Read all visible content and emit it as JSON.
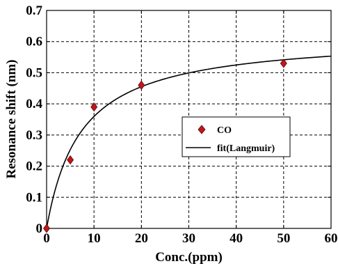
{
  "chart_data": {
    "type": "scatter",
    "xlabel": "Conc.(ppm)",
    "ylabel": "Resonance shift (nm)",
    "xlim": [
      0,
      60
    ],
    "ylim": [
      0,
      0.7
    ],
    "x_ticks": [
      "0",
      "10",
      "20",
      "30",
      "40",
      "50",
      "60"
    ],
    "y_ticks": [
      "0",
      "0.1",
      "0.2",
      "0.3",
      "0.4",
      "0.5",
      "0.6",
      "0.7"
    ],
    "grid": true,
    "legend_position": "center-right",
    "series": [
      {
        "name": "CO",
        "kind": "markers",
        "marker": "diamond",
        "color": "#c0161c",
        "x": [
          0,
          5,
          10,
          20,
          50
        ],
        "y": [
          0.0,
          0.22,
          0.39,
          0.46,
          0.53
        ]
      },
      {
        "name": "fit(Langmuir)",
        "kind": "line",
        "color": "#000000",
        "model": "langmuir",
        "qmax": 0.62,
        "K": 0.138
      }
    ]
  }
}
